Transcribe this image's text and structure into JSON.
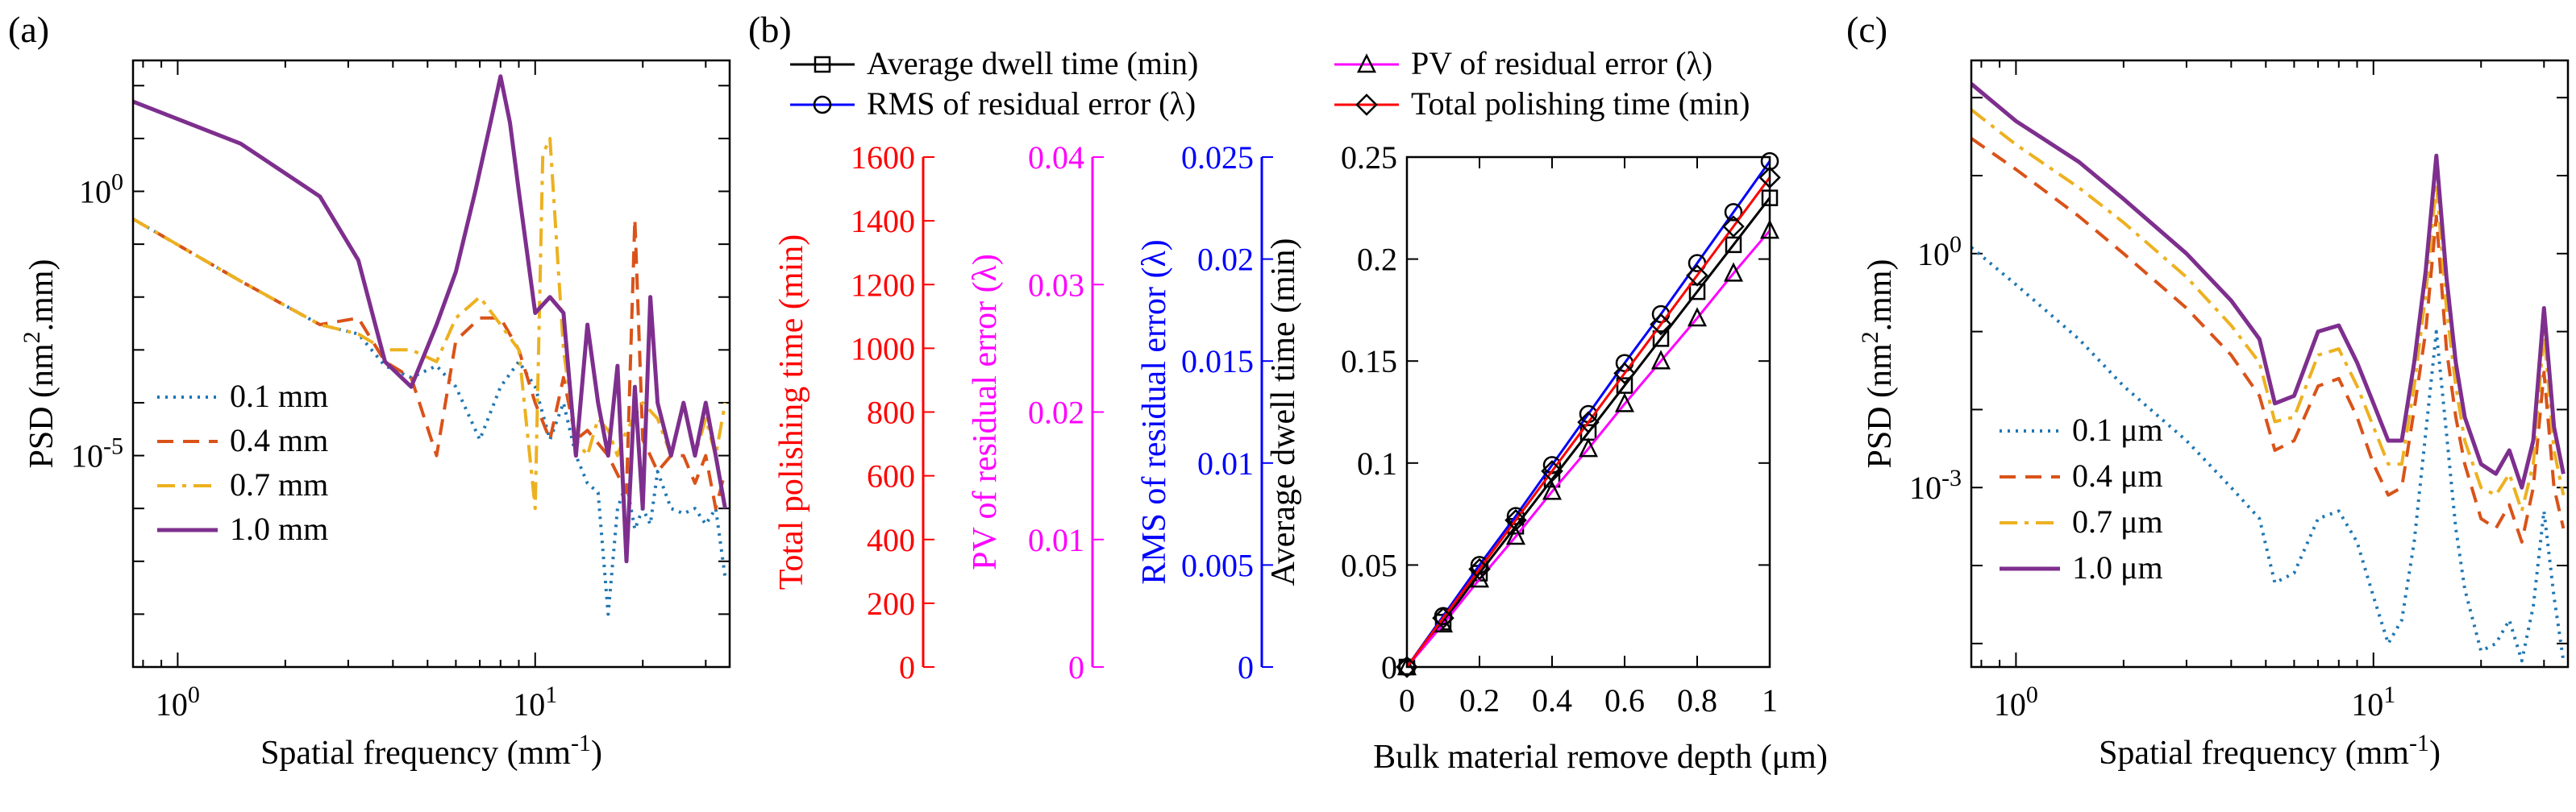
{
  "panels": {
    "a": {
      "label": "(a)"
    },
    "b": {
      "label": "(b)"
    },
    "c": {
      "label": "(c)"
    }
  },
  "colors": {
    "blue_dotted": "#1f77b4",
    "orange_dashed": "#d95319",
    "yellow_dashdot": "#edb120",
    "purple_solid": "#7e2f8e",
    "black": "#000000",
    "blue": "#0000ff",
    "magenta": "#ff00ff",
    "red": "#ff0000"
  },
  "chart_data": [
    {
      "id": "a",
      "type": "line",
      "xlabel": "Spatial frequency (mm",
      "xlabel_sup": "-1",
      "xlabel_end": ")",
      "ylabel": "PSD (nm",
      "ylabel_sup": "2",
      "ylabel_end": ".mm)",
      "xscale": "log",
      "yscale": "log",
      "xlim": [
        0.75,
        35
      ],
      "ylim": [
        1e-09,
        300
      ],
      "xticks": [
        {
          "v": 1,
          "base": "10",
          "exp": "0"
        },
        {
          "v": 10,
          "base": "10",
          "exp": "1"
        }
      ],
      "yticks": [
        {
          "v": 1,
          "base": "10",
          "exp": "0"
        },
        {
          "v": 1e-05,
          "base": "10",
          "exp": "-5"
        }
      ],
      "legend_position": "lower-left",
      "series": [
        {
          "name": "0.1 mm",
          "style": "dotted",
          "color": "#1f77b4",
          "x": [
            0.75,
            1.5,
            2.5,
            3.2,
            3.8,
            4.5,
            5.3,
            6.0,
            7.0,
            8.0,
            9.0,
            10.0,
            11.0,
            12.0,
            13.0,
            14.0,
            15.0,
            16.0,
            17.0,
            18.0,
            19.0,
            20.0,
            21.0,
            22.0,
            24.0,
            26.0,
            28.0,
            30.0,
            32.0,
            34.0
          ],
          "y": [
            0.3,
            0.02,
            0.003,
            0.002,
            0.0005,
            0.0003,
            0.0005,
            0.0002,
            2e-05,
            0.0002,
            0.0006,
            0.0002,
            2e-05,
            0.0001,
            1e-05,
            3e-06,
            2e-06,
            1e-08,
            1e-06,
            3e-06,
            4e-07,
            1e-06,
            5e-07,
            5e-06,
            1e-06,
            8e-07,
            1e-06,
            5e-07,
            1e-06,
            5e-08
          ]
        },
        {
          "name": "0.4 mm",
          "style": "dashed",
          "color": "#d95319",
          "x": [
            0.75,
            1.5,
            2.5,
            3.2,
            3.8,
            4.5,
            5.3,
            6.0,
            7.0,
            8.0,
            9.0,
            10.0,
            11.0,
            12.0,
            13.0,
            14.0,
            16.0,
            18.0,
            19.0,
            20.0,
            21.0,
            22.0,
            24.0,
            26.0,
            28.0,
            30.0,
            32.0,
            34.0
          ],
          "y": [
            0.3,
            0.02,
            0.003,
            0.004,
            0.0006,
            0.0003,
            1e-05,
            0.0015,
            0.004,
            0.004,
            0.001,
            0.0001,
            2e-05,
            0.0003,
            2e-05,
            3e-05,
            1e-05,
            2e-06,
            0.3,
            2e-05,
            1e-05,
            5e-06,
            1e-05,
            1e-05,
            3e-06,
            1e-05,
            1e-06,
            5e-06
          ]
        },
        {
          "name": "0.7 mm",
          "style": "dashdot",
          "color": "#edb120",
          "x": [
            0.75,
            1.5,
            2.5,
            3.2,
            3.8,
            4.5,
            5.3,
            6.0,
            7.0,
            8.0,
            9.0,
            10.0,
            10.5,
            11.0,
            12.0,
            13.0,
            14.0,
            15.0,
            16.0,
            17.0,
            18.0,
            20.0,
            22.0,
            24.0,
            26.0,
            28.0,
            30.0,
            32.0,
            34.0
          ],
          "y": [
            0.3,
            0.02,
            0.003,
            0.002,
            0.001,
            0.001,
            0.0006,
            0.004,
            0.01,
            0.003,
            0.001,
            1e-06,
            5,
            10,
            0.001,
            2e-05,
            1e-05,
            5e-05,
            3e-05,
            1e-05,
            3e-05,
            0.0001,
            5e-05,
            1e-05,
            0.0001,
            1e-05,
            5e-05,
            1e-05,
            0.0001
          ]
        },
        {
          "name": "1.0 mm",
          "style": "solid",
          "color": "#7e2f8e",
          "x": [
            0.75,
            1.5,
            2.5,
            3.2,
            3.8,
            4.5,
            5.3,
            6.0,
            6.8,
            7.5,
            8.0,
            8.5,
            9.0,
            10.0,
            11.0,
            12.0,
            13.0,
            14.0,
            15.0,
            16.0,
            17.0,
            18.0,
            19.0,
            20.0,
            21.0,
            22.0,
            24.0,
            26.0,
            28.0,
            30.0,
            32.0,
            34.0
          ],
          "y": [
            50,
            8,
            0.8,
            0.05,
            0.0006,
            0.0002,
            0.003,
            0.03,
            1,
            20,
            150,
            20,
            1,
            0.005,
            0.01,
            0.005,
            1e-05,
            0.003,
            0.0001,
            1e-05,
            0.0005,
            1e-07,
            0.0002,
            1e-06,
            0.01,
            0.0001,
            1e-05,
            0.0001,
            1e-05,
            0.0001,
            1e-05,
            1e-06
          ]
        }
      ]
    },
    {
      "id": "b",
      "type": "line",
      "xlabel": "Bulk material remove depth (μm)",
      "ylabel": "Average dwell time (min)",
      "xlim": [
        0,
        1
      ],
      "ylim": [
        0,
        0.25
      ],
      "xticks": [
        {
          "v": 0,
          "label": "0"
        },
        {
          "v": 0.2,
          "label": "0.2"
        },
        {
          "v": 0.4,
          "label": "0.4"
        },
        {
          "v": 0.6,
          "label": "0.6"
        },
        {
          "v": 0.8,
          "label": "0.8"
        },
        {
          "v": 1,
          "label": "1"
        }
      ],
      "yticks": [
        {
          "v": 0,
          "label": "0"
        },
        {
          "v": 0.05,
          "label": "0.05"
        },
        {
          "v": 0.1,
          "label": "0.1"
        },
        {
          "v": 0.15,
          "label": "0.15"
        },
        {
          "v": 0.2,
          "label": "0.2"
        },
        {
          "v": 0.25,
          "label": "0.25"
        }
      ],
      "extra_axes": [
        {
          "label": "Total polishing time (min)",
          "color": "#ff0000",
          "ticks": [
            "0",
            "200",
            "400",
            "600",
            "800",
            "1000",
            "1200",
            "1400",
            "1600"
          ]
        },
        {
          "label": "PV of residual error (λ)",
          "color": "#ff00ff",
          "ticks": [
            "0",
            "0.01",
            "0.02",
            "0.03",
            "0.04"
          ]
        },
        {
          "label": "RMS of residual error (λ)",
          "color": "#0000ff",
          "ticks": [
            "0",
            "0.005",
            "0.01",
            "0.015",
            "0.02",
            "0.025"
          ]
        }
      ],
      "legend_position": "top",
      "series": [
        {
          "name": "Average dwell time (min)",
          "color": "#000000",
          "marker": "square",
          "x": [
            0,
            0.1,
            0.2,
            0.3,
            0.4,
            0.5,
            0.6,
            0.7,
            0.8,
            0.9,
            1.0
          ],
          "y": [
            0,
            0.022,
            0.046,
            0.069,
            0.092,
            0.115,
            0.138,
            0.161,
            0.184,
            0.207,
            0.23
          ]
        },
        {
          "name": "PV of residual error (λ)",
          "color": "#ff00ff",
          "marker": "triangle",
          "x": [
            0,
            0.1,
            0.2,
            0.3,
            0.4,
            0.5,
            0.6,
            0.7,
            0.8,
            0.9,
            1.0
          ],
          "y": [
            0,
            0.021,
            0.043,
            0.064,
            0.086,
            0.107,
            0.129,
            0.15,
            0.171,
            0.193,
            0.214
          ]
        },
        {
          "name": "RMS of residual error (λ)",
          "color": "#0000ff",
          "marker": "circle",
          "x": [
            0,
            0.1,
            0.2,
            0.3,
            0.4,
            0.5,
            0.6,
            0.7,
            0.8,
            0.9,
            1.0
          ],
          "y": [
            0,
            0.025,
            0.05,
            0.074,
            0.099,
            0.124,
            0.149,
            0.173,
            0.198,
            0.223,
            0.248
          ]
        },
        {
          "name": "Total polishing time (min)",
          "color": "#ff0000",
          "marker": "diamond",
          "x": [
            0,
            0.1,
            0.2,
            0.3,
            0.4,
            0.5,
            0.6,
            0.7,
            0.8,
            0.9,
            1.0
          ],
          "y": [
            0,
            0.024,
            0.048,
            0.072,
            0.096,
            0.12,
            0.144,
            0.168,
            0.192,
            0.216,
            0.24
          ]
        }
      ]
    },
    {
      "id": "c",
      "type": "line",
      "xlabel": "Spatial frequency (mm",
      "xlabel_sup": "-1",
      "xlabel_end": ")",
      "ylabel": "PSD (nm",
      "ylabel_sup": "2",
      "ylabel_end": ".mm)",
      "xscale": "log",
      "yscale": "log",
      "xlim": [
        0.75,
        35
      ],
      "ylim": [
        5e-06,
        300
      ],
      "xticks": [
        {
          "v": 1,
          "base": "10",
          "exp": "0"
        },
        {
          "v": 10,
          "base": "10",
          "exp": "1"
        }
      ],
      "yticks": [
        {
          "v": 1,
          "base": "10",
          "exp": "0"
        },
        {
          "v": 0.001,
          "base": "10",
          "exp": "-3"
        }
      ],
      "legend_position": "lower-left",
      "series": [
        {
          "name": "0.1 μm",
          "style": "dotted",
          "color": "#1f77b4",
          "x": [
            0.75,
            1.0,
            1.5,
            2.0,
            3.0,
            4.0,
            4.8,
            5.3,
            6.0,
            7.0,
            8.0,
            9.0,
            10.0,
            11.0,
            12.0,
            13.0,
            14.0,
            15.0,
            16.0,
            17.0,
            18.0,
            20.0,
            22.0,
            24.0,
            26.0,
            28.0,
            30.0,
            32.0,
            34.0
          ],
          "y": [
            1.2,
            0.4,
            0.08,
            0.02,
            0.004,
            0.001,
            0.0004,
            6e-05,
            8e-05,
            0.0004,
            0.0005,
            0.0002,
            4e-05,
            1e-05,
            2e-05,
            0.0002,
            0.005,
            0.1,
            0.005,
            0.0003,
            5e-05,
            8e-06,
            1e-05,
            2e-05,
            6e-06,
            3e-05,
            0.0005,
            4e-05,
            6e-06
          ]
        },
        {
          "name": "0.4 μm",
          "style": "dashed",
          "color": "#d95319",
          "x": [
            0.75,
            1.0,
            1.5,
            2.0,
            3.0,
            4.0,
            4.8,
            5.3,
            6.0,
            7.0,
            8.0,
            9.0,
            10.0,
            11.0,
            12.0,
            13.0,
            14.0,
            15.0,
            16.0,
            17.0,
            18.0,
            20.0,
            22.0,
            24.0,
            26.0,
            28.0,
            30.0,
            32.0,
            34.0
          ],
          "y": [
            30,
            12,
            3,
            1,
            0.2,
            0.05,
            0.015,
            0.003,
            0.004,
            0.02,
            0.025,
            0.008,
            0.002,
            0.0008,
            0.001,
            0.01,
            0.1,
            3,
            0.06,
            0.008,
            0.002,
            0.0004,
            0.0003,
            0.0006,
            0.0002,
            0.001,
            0.03,
            0.001,
            0.0003
          ]
        },
        {
          "name": "0.7 μm",
          "style": "dashdot",
          "color": "#edb120",
          "x": [
            0.75,
            1.0,
            1.5,
            2.0,
            3.0,
            4.0,
            4.8,
            5.3,
            6.0,
            7.0,
            8.0,
            9.0,
            10.0,
            11.0,
            12.0,
            13.0,
            14.0,
            15.0,
            16.0,
            17.0,
            18.0,
            20.0,
            22.0,
            24.0,
            26.0,
            28.0,
            30.0,
            32.0,
            34.0
          ],
          "y": [
            70,
            25,
            7,
            2.5,
            0.5,
            0.12,
            0.04,
            0.007,
            0.008,
            0.05,
            0.06,
            0.02,
            0.006,
            0.002,
            0.002,
            0.02,
            0.3,
            8,
            0.2,
            0.02,
            0.004,
            0.001,
            0.0008,
            0.0015,
            0.0005,
            0.002,
            0.1,
            0.003,
            0.0008
          ]
        },
        {
          "name": "1.0 μm",
          "style": "solid",
          "color": "#7e2f8e",
          "x": [
            0.75,
            1.0,
            1.5,
            2.0,
            3.0,
            4.0,
            4.8,
            5.3,
            6.0,
            7.0,
            8.0,
            9.0,
            10.0,
            11.0,
            12.0,
            13.0,
            14.0,
            15.0,
            16.0,
            17.0,
            18.0,
            20.0,
            22.0,
            24.0,
            26.0,
            28.0,
            30.0,
            32.0,
            34.0
          ],
          "y": [
            150,
            50,
            15,
            5,
            1,
            0.25,
            0.08,
            0.012,
            0.015,
            0.1,
            0.12,
            0.04,
            0.012,
            0.004,
            0.004,
            0.04,
            0.6,
            18,
            0.5,
            0.04,
            0.008,
            0.002,
            0.0015,
            0.003,
            0.001,
            0.004,
            0.2,
            0.006,
            0.0015
          ]
        }
      ]
    }
  ]
}
